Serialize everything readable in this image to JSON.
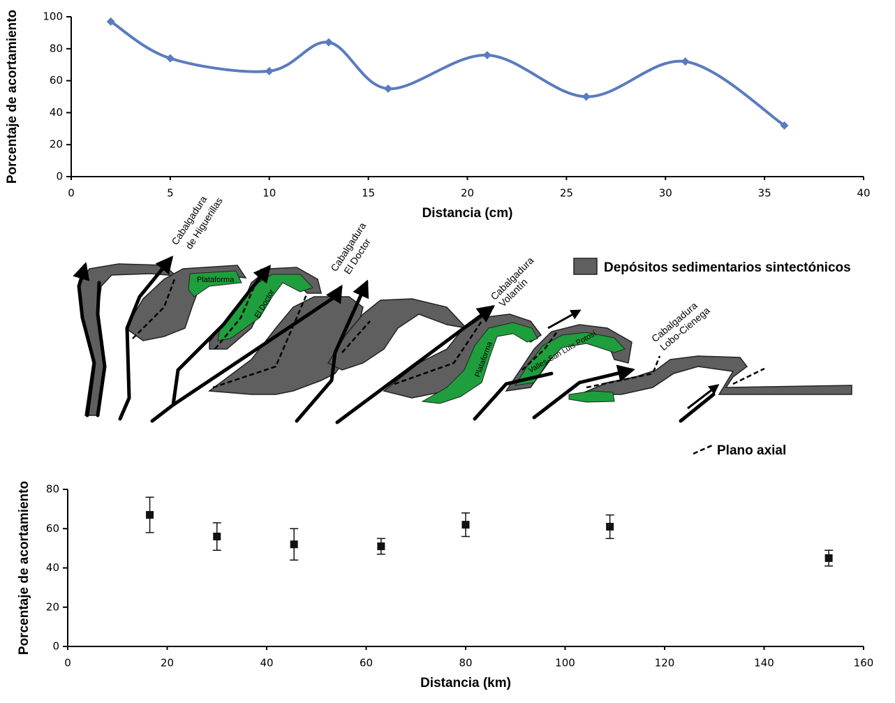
{
  "chart_data": [
    {
      "type": "line",
      "x_label": "Distancia (cm)",
      "y_label": "Porcentaje de acortamiento",
      "x": [
        2,
        5,
        10,
        13,
        16,
        21,
        26,
        31,
        36
      ],
      "series": [
        {
          "color": "#5a7bbf",
          "values": [
            97,
            74,
            66,
            84,
            55,
            76,
            50,
            72,
            32
          ]
        }
      ],
      "xlim": [
        0,
        40
      ],
      "xticks": [
        0,
        5,
        10,
        15,
        20,
        25,
        30,
        35,
        40
      ],
      "ylim": [
        0,
        100
      ],
      "yticks": [
        0,
        20,
        40,
        60,
        80,
        100
      ],
      "grid": false,
      "smooth": true
    },
    {
      "type": "scatter",
      "x_label": "Distancia (km)",
      "y_label": "Porcentaje de acortamiento",
      "x": [
        16.5,
        30,
        45.5,
        63,
        80,
        109,
        153
      ],
      "series": [
        {
          "color": "#111111",
          "values": [
            67,
            56,
            52,
            51,
            62,
            61,
            45
          ],
          "errors": [
            9,
            7,
            8,
            4,
            6,
            6,
            4
          ]
        }
      ],
      "xlim": [
        0,
        160
      ],
      "xticks": [
        0,
        20,
        40,
        60,
        80,
        100,
        120,
        140,
        160
      ],
      "ylim": [
        0,
        80
      ],
      "yticks": [
        0,
        20,
        40,
        60,
        80
      ],
      "grid": false
    }
  ],
  "diagram": {
    "thrusts": [
      {
        "lines": [
          "Cabalgadura",
          "de Higuerillas"
        ]
      },
      {
        "lines": [
          "Cabalgadura",
          "El Doctor"
        ]
      },
      {
        "lines": [
          "Cabalgadura",
          "Volantín"
        ]
      },
      {
        "lines": [
          "Cabalgadura",
          "Lobo-Cienega"
        ]
      }
    ],
    "units": [
      "Plataforma",
      "El Doctor",
      "Plataforma",
      "Valles-San Luis Potosí"
    ],
    "legend": {
      "deposits": "Depósitos sedimentarios sintectónicos",
      "axial": "Plano axial"
    }
  }
}
